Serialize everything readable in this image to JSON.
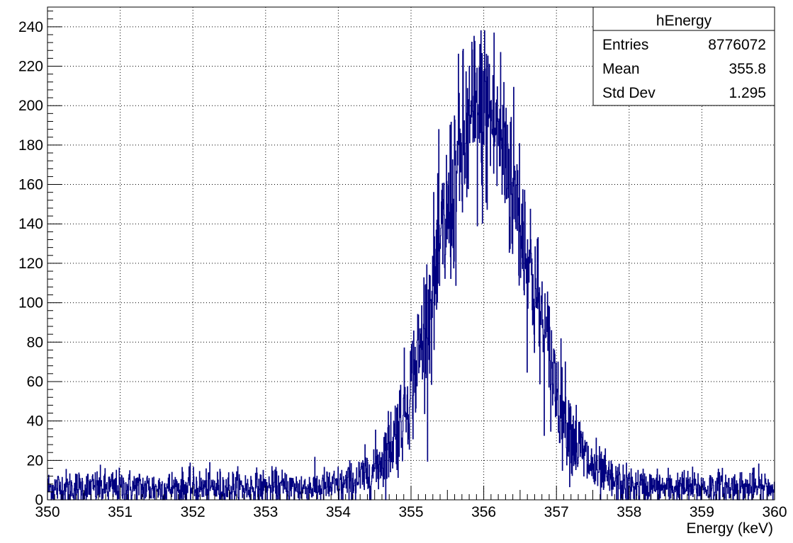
{
  "chart_data": {
    "type": "histogram",
    "title": "",
    "xlabel": "Energy (keV)",
    "ylabel": "",
    "xlim": [
      350,
      360
    ],
    "ylim": [
      0,
      250
    ],
    "x_ticks": [
      350,
      351,
      352,
      353,
      354,
      355,
      356,
      357,
      358,
      359,
      360
    ],
    "y_ticks": [
      0,
      20,
      40,
      60,
      80,
      100,
      120,
      140,
      160,
      180,
      200,
      220,
      240
    ],
    "grid": true,
    "line_color": "#000080",
    "series": [
      {
        "name": "hEnergy",
        "profile": "gaussian peak on flat background with bin-to-bin fluctuations",
        "peak_center": 356.0,
        "peak_sigma": 0.62,
        "peak_height": 190,
        "background": 6,
        "max_value": 238,
        "envelope": {
          "x": [
            350.0,
            353.0,
            353.5,
            354.0,
            354.5,
            355.0,
            355.5,
            356.0,
            356.5,
            357.0,
            357.5,
            358.0,
            358.5,
            360.0
          ],
          "y": [
            7,
            7,
            9,
            16,
            42,
            92,
            158,
            196,
            158,
            92,
            40,
            12,
            7,
            6
          ]
        }
      }
    ],
    "stats_box": {
      "title": "hEnergy",
      "rows": [
        {
          "label": "Entries",
          "value": "8776072"
        },
        {
          "label": "Mean",
          "value": "355.8"
        },
        {
          "label": "Std Dev",
          "value": "1.295"
        }
      ]
    }
  }
}
